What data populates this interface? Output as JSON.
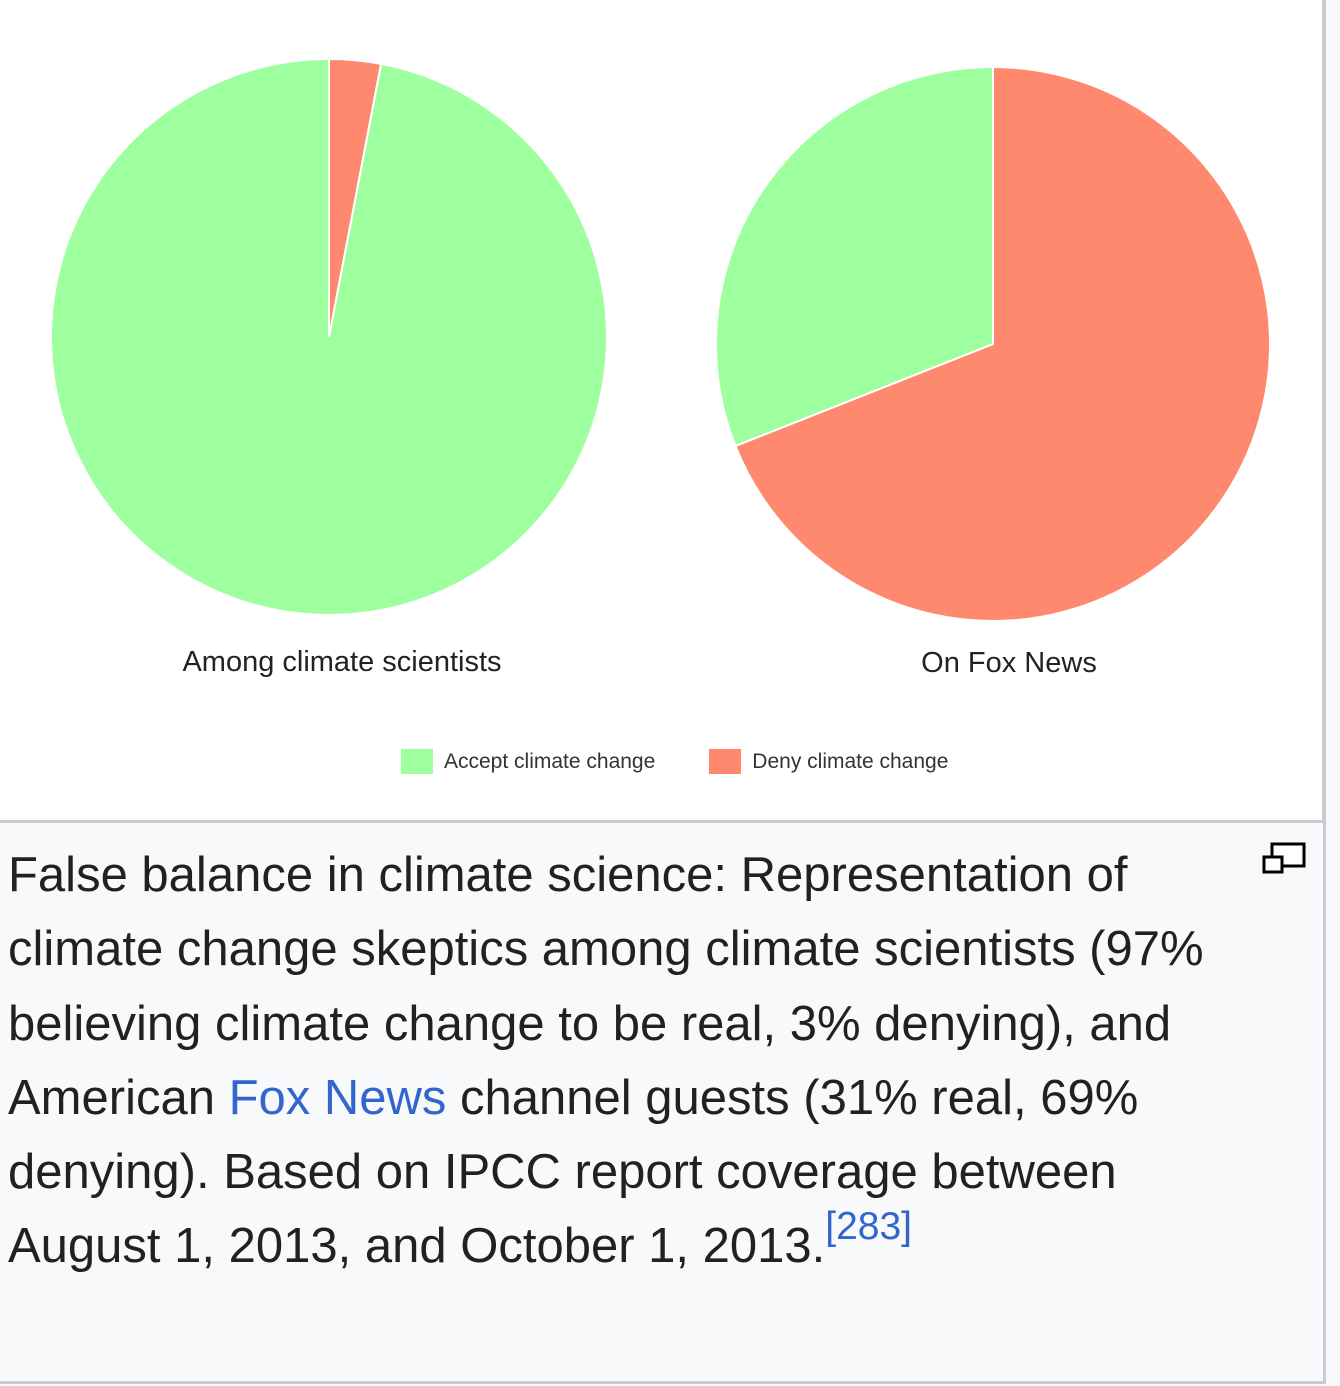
{
  "chart_data": {
    "type": "pie",
    "title": "",
    "colors": {
      "accept": "#9eff9e",
      "deny": "#ff896e"
    },
    "legend": [
      {
        "label": "Accept climate change",
        "color": "#9eff9e"
      },
      {
        "label": "Deny climate change",
        "color": "#ff896e"
      }
    ],
    "legend_position": "bottom",
    "charts": [
      {
        "label": "Among climate scientists",
        "slices": [
          {
            "name": "Accept climate change",
            "value": 97
          },
          {
            "name": "Deny climate change",
            "value": 3
          }
        ]
      },
      {
        "label": "On Fox News",
        "slices": [
          {
            "name": "Accept climate change",
            "value": 31
          },
          {
            "name": "Deny climate change",
            "value": 69
          }
        ]
      }
    ]
  },
  "labels": {
    "pie1": "Among climate scientists",
    "pie2": "On Fox News",
    "legend_accept": "Accept climate change",
    "legend_deny": "Deny climate change"
  },
  "caption": {
    "part1": "False balance in climate science: Representation of climate change skeptics among climate scientists (97% believing climate change to be real, 3% denying), and American ",
    "link_text": "Fox News",
    "part2": " channel guests (31% real, 69% denying). Based on IPCC report coverage between August 1, 2013, and October 1, 2013.",
    "citation": "[283]"
  },
  "icons": {
    "enlarge": "enlarge-icon"
  }
}
